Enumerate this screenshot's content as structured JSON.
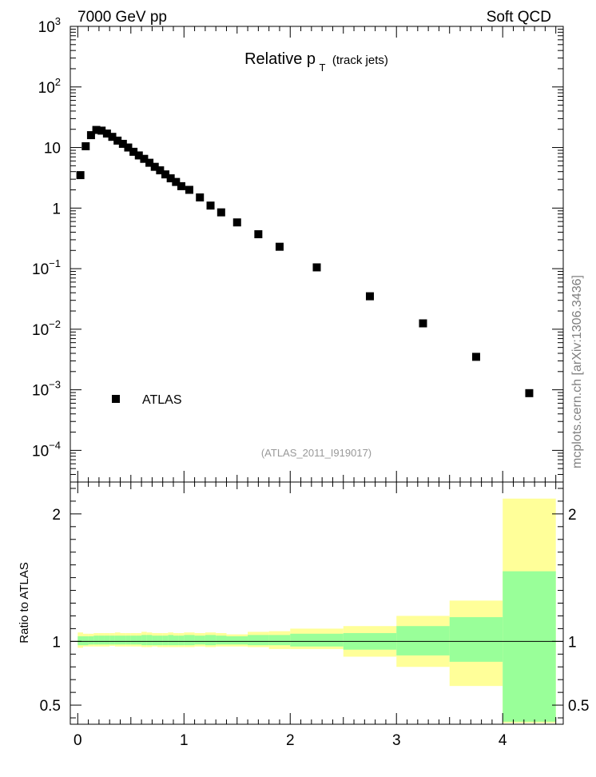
{
  "header": {
    "energy_label": "7000 GeV pp",
    "process_label": "Soft QCD",
    "watermark": "mcplots.cern.ch [arXiv:1306.3436]"
  },
  "chart_data": [
    {
      "type": "scatter",
      "panel": "main",
      "title_main": "Relative p",
      "title_sub": "T",
      "title_suffix": "(track jets)",
      "analysis_label": "(ATLAS_2011_I919017)",
      "yscale": "log",
      "ylim": [
        3e-05,
        1000
      ],
      "xlim": [
        -0.07,
        4.57
      ],
      "ytick_labels": [
        {
          "value": 1000,
          "base": "10",
          "exp": "3"
        },
        {
          "value": 100,
          "base": "10",
          "exp": "2"
        },
        {
          "value": 10,
          "base": "10",
          "exp": ""
        },
        {
          "value": 1,
          "base": "1",
          "exp": ""
        },
        {
          "value": 0.1,
          "base": "10",
          "exp": "−1"
        },
        {
          "value": 0.01,
          "base": "10",
          "exp": "−2"
        },
        {
          "value": 0.001,
          "base": "10",
          "exp": "−3"
        },
        {
          "value": 0.0001,
          "base": "10",
          "exp": "−4"
        }
      ],
      "legend": {
        "placement": "bottom-left",
        "entries": [
          "ATLAS"
        ]
      },
      "series": [
        {
          "name": "ATLAS",
          "x": [
            0.025,
            0.075,
            0.125,
            0.175,
            0.225,
            0.275,
            0.325,
            0.375,
            0.425,
            0.475,
            0.525,
            0.575,
            0.625,
            0.675,
            0.725,
            0.775,
            0.825,
            0.875,
            0.925,
            0.975,
            1.05,
            1.15,
            1.25,
            1.35,
            1.5,
            1.7,
            1.9,
            2.25,
            2.75,
            3.25,
            3.75,
            4.25
          ],
          "y": [
            3.5,
            10.5,
            16,
            19.5,
            19,
            17,
            15,
            13,
            11.5,
            10,
            8.5,
            7.4,
            6.5,
            5.6,
            4.8,
            4.2,
            3.6,
            3.1,
            2.7,
            2.3,
            2.0,
            1.5,
            1.1,
            0.85,
            0.58,
            0.37,
            0.23,
            0.105,
            0.035,
            0.0125,
            0.0035,
            0.00088
          ]
        }
      ]
    },
    {
      "type": "area",
      "panel": "ratio",
      "ylabel": "Ratio to ATLAS",
      "ylim": [
        0.35,
        2.25
      ],
      "xlim": [
        -0.07,
        4.57
      ],
      "yticks": [
        0.5,
        1,
        2
      ],
      "ytick_labels": [
        "0.5",
        "1",
        "2"
      ],
      "xticks": [
        0,
        1,
        2,
        3,
        4
      ],
      "xtick_labels": [
        "0",
        "1",
        "2",
        "3",
        "4"
      ],
      "reference_line": 1,
      "bins": [
        {
          "lo": 0.0,
          "hi": 0.05,
          "g": [
            0.97,
            1.04
          ],
          "y": [
            0.95,
            1.07
          ]
        },
        {
          "lo": 0.05,
          "hi": 0.1,
          "g": [
            0.97,
            1.04
          ],
          "y": [
            0.96,
            1.06
          ]
        },
        {
          "lo": 0.1,
          "hi": 0.15,
          "g": [
            0.975,
            1.04
          ],
          "y": [
            0.96,
            1.06
          ]
        },
        {
          "lo": 0.15,
          "hi": 0.2,
          "g": [
            0.975,
            1.045
          ],
          "y": [
            0.96,
            1.065
          ]
        },
        {
          "lo": 0.2,
          "hi": 0.25,
          "g": [
            0.975,
            1.045
          ],
          "y": [
            0.96,
            1.065
          ]
        },
        {
          "lo": 0.25,
          "hi": 0.3,
          "g": [
            0.975,
            1.045
          ],
          "y": [
            0.96,
            1.065
          ]
        },
        {
          "lo": 0.3,
          "hi": 0.35,
          "g": [
            0.975,
            1.045
          ],
          "y": [
            0.965,
            1.065
          ]
        },
        {
          "lo": 0.35,
          "hi": 0.4,
          "g": [
            0.975,
            1.045
          ],
          "y": [
            0.96,
            1.07
          ]
        },
        {
          "lo": 0.4,
          "hi": 0.45,
          "g": [
            0.975,
            1.045
          ],
          "y": [
            0.96,
            1.065
          ]
        },
        {
          "lo": 0.45,
          "hi": 0.5,
          "g": [
            0.975,
            1.045
          ],
          "y": [
            0.96,
            1.065
          ]
        },
        {
          "lo": 0.5,
          "hi": 0.55,
          "g": [
            0.975,
            1.045
          ],
          "y": [
            0.96,
            1.065
          ]
        },
        {
          "lo": 0.55,
          "hi": 0.6,
          "g": [
            0.975,
            1.045
          ],
          "y": [
            0.96,
            1.065
          ]
        },
        {
          "lo": 0.6,
          "hi": 0.65,
          "g": [
            0.97,
            1.05
          ],
          "y": [
            0.955,
            1.075
          ]
        },
        {
          "lo": 0.65,
          "hi": 0.7,
          "g": [
            0.97,
            1.05
          ],
          "y": [
            0.955,
            1.07
          ]
        },
        {
          "lo": 0.7,
          "hi": 0.75,
          "g": [
            0.97,
            1.045
          ],
          "y": [
            0.96,
            1.065
          ]
        },
        {
          "lo": 0.75,
          "hi": 0.8,
          "g": [
            0.97,
            1.045
          ],
          "y": [
            0.955,
            1.065
          ]
        },
        {
          "lo": 0.8,
          "hi": 0.85,
          "g": [
            0.97,
            1.045
          ],
          "y": [
            0.955,
            1.065
          ]
        },
        {
          "lo": 0.85,
          "hi": 0.9,
          "g": [
            0.97,
            1.05
          ],
          "y": [
            0.955,
            1.07
          ]
        },
        {
          "lo": 0.9,
          "hi": 0.95,
          "g": [
            0.97,
            1.045
          ],
          "y": [
            0.955,
            1.065
          ]
        },
        {
          "lo": 0.95,
          "hi": 1.0,
          "g": [
            0.97,
            1.045
          ],
          "y": [
            0.955,
            1.065
          ]
        },
        {
          "lo": 1.0,
          "hi": 1.1,
          "g": [
            0.97,
            1.05
          ],
          "y": [
            0.955,
            1.07
          ]
        },
        {
          "lo": 1.1,
          "hi": 1.2,
          "g": [
            0.975,
            1.045
          ],
          "y": [
            0.96,
            1.065
          ]
        },
        {
          "lo": 1.2,
          "hi": 1.3,
          "g": [
            0.97,
            1.05
          ],
          "y": [
            0.955,
            1.07
          ]
        },
        {
          "lo": 1.3,
          "hi": 1.4,
          "g": [
            0.975,
            1.045
          ],
          "y": [
            0.96,
            1.065
          ]
        },
        {
          "lo": 1.4,
          "hi": 1.6,
          "g": [
            0.975,
            1.04
          ],
          "y": [
            0.96,
            1.055
          ]
        },
        {
          "lo": 1.6,
          "hi": 1.8,
          "g": [
            0.97,
            1.05
          ],
          "y": [
            0.955,
            1.075
          ]
        },
        {
          "lo": 1.8,
          "hi": 2.0,
          "g": [
            0.97,
            1.05
          ],
          "y": [
            0.94,
            1.08
          ]
        },
        {
          "lo": 2.0,
          "hi": 2.5,
          "g": [
            0.96,
            1.06
          ],
          "y": [
            0.94,
            1.1
          ]
        },
        {
          "lo": 2.5,
          "hi": 3.0,
          "g": [
            0.935,
            1.065
          ],
          "y": [
            0.88,
            1.12
          ]
        },
        {
          "lo": 3.0,
          "hi": 3.5,
          "g": [
            0.89,
            1.12
          ],
          "y": [
            0.8,
            1.2
          ]
        },
        {
          "lo": 3.5,
          "hi": 4.0,
          "g": [
            0.84,
            1.19
          ],
          "y": [
            0.65,
            1.32
          ]
        },
        {
          "lo": 4.0,
          "hi": 4.5,
          "g": [
            0.37,
            1.55
          ],
          "y": [
            0.36,
            2.12
          ]
        }
      ]
    }
  ],
  "colors": {
    "marker": "#000000",
    "band_inner": "#99ff99",
    "band_outer": "#ffff99",
    "analysis_label": "#999999",
    "watermark": "#808080"
  }
}
